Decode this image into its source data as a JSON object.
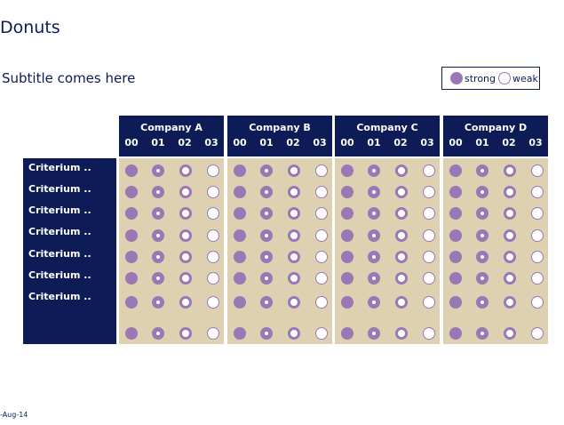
{
  "title": "Donuts",
  "subtitle": "Subtitle comes here",
  "legend": {
    "strong_label": "strong",
    "weak_label": "weak"
  },
  "colors": {
    "navy": "#0d1b57",
    "purple": "#9a78b6",
    "beige": "#ddd1b2",
    "white": "#ffffff"
  },
  "icons": {
    "level_0": "filled-circle",
    "level_1": "thick-ring",
    "level_2": "thin-ring",
    "level_3": "empty-circle"
  },
  "companies": [
    {
      "name": "Company A",
      "periods": [
        "00",
        "01",
        "02",
        "03"
      ]
    },
    {
      "name": "Company B",
      "periods": [
        "00",
        "01",
        "02",
        "03"
      ]
    },
    {
      "name": "Company C",
      "periods": [
        "00",
        "01",
        "02",
        "03"
      ]
    },
    {
      "name": "Company D",
      "periods": [
        "00",
        "01",
        "02",
        "03"
      ]
    }
  ],
  "rows": [
    {
      "label": "Criterium .."
    },
    {
      "label": "Criterium .."
    },
    {
      "label": "Criterium .."
    },
    {
      "label": "Criterium .."
    },
    {
      "label": "Criterium .."
    },
    {
      "label": "Criterium .."
    },
    {
      "label": "Criterium .."
    },
    {
      "label": ""
    }
  ],
  "footer": "-Aug-14"
}
